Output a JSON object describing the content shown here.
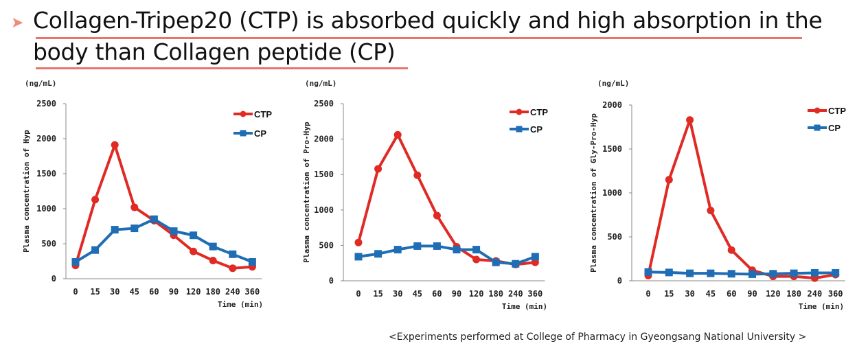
{
  "slide": {
    "bullet": "➤",
    "title_line1": "Collagen-Tripep20 (CTP) is absorbed quickly and high absorption in the",
    "title_line2": "body than  Collagen peptide (CP)",
    "footnote": "<Experiments performed  at College of Pharmacy in Gyeongsang National University  >"
  },
  "colors": {
    "CTP": "#e02a24",
    "CP": "#1f6db5",
    "accent": "#e8746a"
  },
  "chart_data": [
    {
      "type": "line",
      "unit_label": "(ng/mL)",
      "ylabel": "Plasma concentration of Hyp",
      "xlabel": "Time (min)",
      "categories": [
        "0",
        "15",
        "30",
        "45",
        "60",
        "90",
        "120",
        "180",
        "240",
        "360"
      ],
      "ylim": [
        0,
        2500
      ],
      "yticks": [
        0,
        500,
        1000,
        1500,
        2000,
        2500
      ],
      "series": [
        {
          "name": "CTP",
          "values": [
            190,
            1130,
            1910,
            1020,
            830,
            620,
            390,
            260,
            150,
            170
          ]
        },
        {
          "name": "CP",
          "values": [
            240,
            410,
            700,
            720,
            850,
            680,
            620,
            460,
            350,
            240
          ]
        }
      ]
    },
    {
      "type": "line",
      "unit_label": "(ng/mL)",
      "ylabel": "Plasma concentration of Pro-Hyp",
      "xlabel": "Time (min)",
      "categories": [
        "0",
        "15",
        "30",
        "45",
        "60",
        "90",
        "120",
        "180",
        "240",
        "360"
      ],
      "ylim": [
        0,
        2500
      ],
      "yticks": [
        0,
        500,
        1000,
        1500,
        2000,
        2500
      ],
      "series": [
        {
          "name": "CTP",
          "values": [
            540,
            1580,
            2060,
            1490,
            920,
            480,
            300,
            280,
            230,
            260
          ]
        },
        {
          "name": "CP",
          "values": [
            340,
            380,
            440,
            490,
            490,
            440,
            440,
            260,
            240,
            340
          ]
        }
      ]
    },
    {
      "type": "line",
      "unit_label": "(ng/mL)",
      "ylabel": "Plasma concentration of Gly-Pro-Hyp",
      "xlabel": "Time (min)",
      "categories": [
        "0",
        "15",
        "30",
        "45",
        "60",
        "90",
        "120",
        "180",
        "240",
        "360"
      ],
      "ylim": [
        0,
        2000
      ],
      "yticks": [
        0,
        500,
        1000,
        1500,
        2000
      ],
      "series": [
        {
          "name": "CTP",
          "values": [
            60,
            1150,
            1830,
            800,
            350,
            120,
            50,
            50,
            30,
            70
          ]
        },
        {
          "name": "CP",
          "values": [
            100,
            95,
            85,
            85,
            80,
            75,
            80,
            85,
            90,
            90
          ]
        }
      ]
    }
  ]
}
